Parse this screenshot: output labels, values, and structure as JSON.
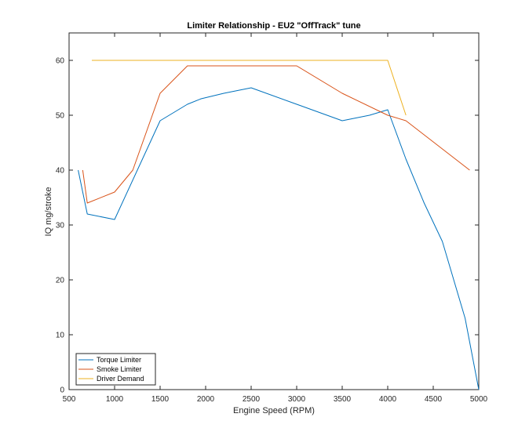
{
  "chart_data": {
    "type": "line",
    "title": "Limiter Relationship - EU2 \"OffTrack\" tune",
    "xlabel": "Engine Speed (RPM)",
    "ylabel": "IQ mg/stroke",
    "xlim": [
      500,
      5000
    ],
    "ylim": [
      0,
      65
    ],
    "xticks": [
      500,
      1000,
      1500,
      2000,
      2500,
      3000,
      3500,
      4000,
      4500,
      5000
    ],
    "yticks": [
      0,
      10,
      20,
      30,
      40,
      50,
      60
    ],
    "grid": false,
    "legend_position": "bottom-left",
    "series": [
      {
        "name": "Torque Limiter",
        "color": "#0072BD",
        "x": [
          600,
          700,
          1000,
          1500,
          1800,
          1950,
          2200,
          2500,
          3000,
          3500,
          3800,
          4000,
          4200,
          4400,
          4600,
          4850,
          5000
        ],
        "y": [
          40,
          32,
          31,
          49,
          52,
          53,
          54,
          55,
          52,
          49,
          50,
          51,
          42,
          34,
          27,
          13,
          0
        ]
      },
      {
        "name": "Smoke Limiter",
        "color": "#D95319",
        "x": [
          650,
          700,
          1000,
          1200,
          1500,
          1800,
          2500,
          3000,
          3500,
          4000,
          4200,
          4900
        ],
        "y": [
          40,
          34,
          36,
          40,
          54,
          59,
          59,
          59,
          54,
          50,
          49,
          40
        ]
      },
      {
        "name": "Driver Demand",
        "color": "#EDB120",
        "x": [
          750,
          1000,
          1500,
          2000,
          2500,
          3000,
          3500,
          4000,
          4200
        ],
        "y": [
          60,
          60,
          60,
          60,
          60,
          60,
          60,
          60,
          50
        ]
      }
    ]
  }
}
